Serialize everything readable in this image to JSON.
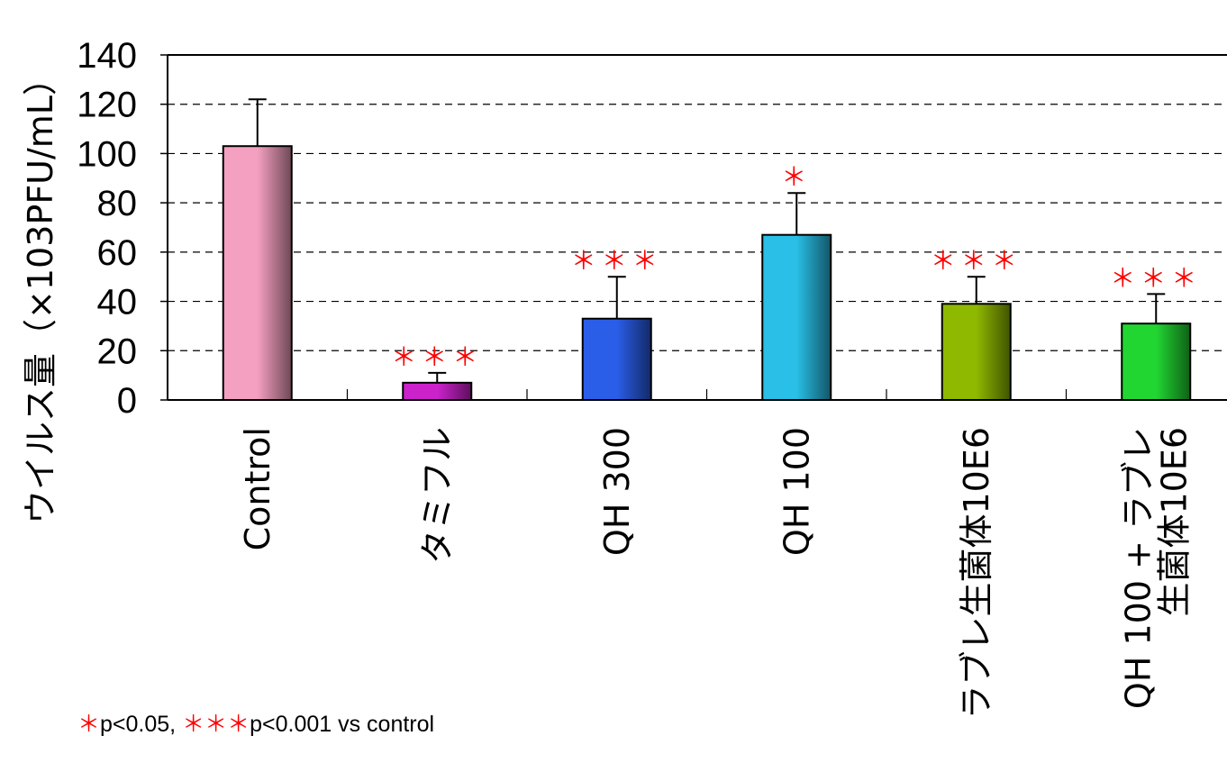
{
  "chart_data": {
    "type": "bar",
    "ylabel": "ウイルス量（×103PFU/mL）",
    "ylim": [
      0,
      140
    ],
    "yticks": [
      0,
      20,
      40,
      60,
      80,
      100,
      120,
      140
    ],
    "grid": "horizontal dashed",
    "categories": [
      [
        "Control"
      ],
      [
        "タミフル"
      ],
      [
        "QH 300"
      ],
      [
        "QH 100"
      ],
      [
        "ラブレ生菌体10E6"
      ],
      [
        "QH 100 + ラブレ",
        "生菌体10E6"
      ]
    ],
    "values": [
      103,
      7,
      33,
      67,
      39,
      31
    ],
    "error_upper": [
      122,
      11,
      50,
      84,
      50,
      43
    ],
    "significance": [
      "",
      "＊＊＊",
      "＊＊＊",
      "＊",
      "＊＊＊",
      "＊＊＊"
    ],
    "colors": [
      "#f4a0c0",
      "#cc22cc",
      "#2a5ee8",
      "#29bfe6",
      "#8fb800",
      "#22d632"
    ]
  },
  "footnote": {
    "star1": "＊",
    "text1": "p<0.05,",
    "star3": "＊＊＊",
    "text3": "p<0.001 vs control"
  }
}
